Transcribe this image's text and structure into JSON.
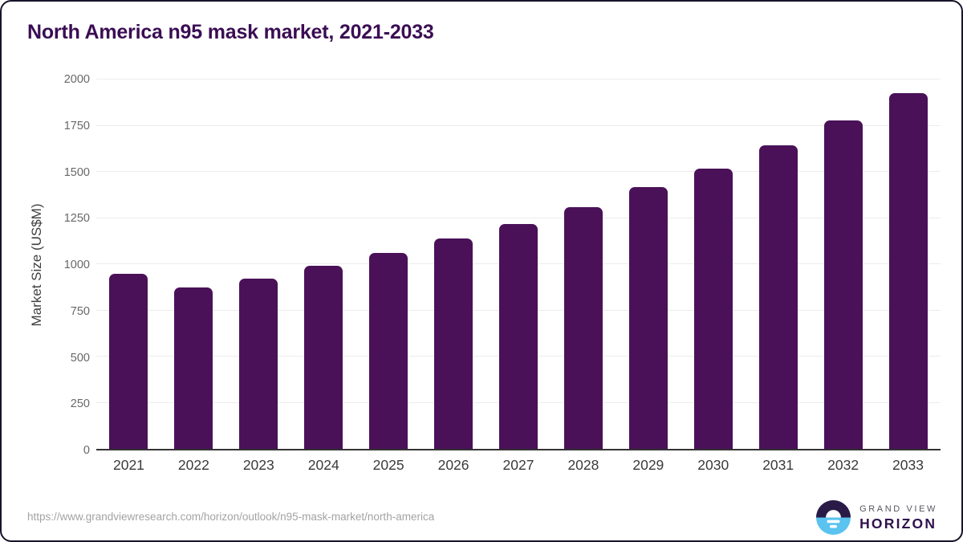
{
  "title": "North America n95 mask market, 2021-2033",
  "chart_data": {
    "type": "bar",
    "categories": [
      "2021",
      "2022",
      "2023",
      "2024",
      "2025",
      "2026",
      "2027",
      "2028",
      "2029",
      "2030",
      "2031",
      "2032",
      "2033"
    ],
    "values": [
      948,
      872,
      920,
      992,
      1062,
      1140,
      1218,
      1308,
      1418,
      1518,
      1645,
      1778,
      1925
    ],
    "title": "North America n95 mask market, 2021-2033",
    "xlabel": "",
    "ylabel": "Market Size (US$M)",
    "ylim": [
      0,
      2000
    ],
    "yticks": [
      0,
      250,
      500,
      750,
      1000,
      1250,
      1500,
      1750,
      2000
    ],
    "grid": true,
    "legend": "none",
    "bar_color": "#4a1158"
  },
  "colors": {
    "bar": "#4a1158",
    "title_text": "#3b0d54",
    "gridline": "#ececec",
    "axis_line": "#333333",
    "logo_navy": "#2a1a47",
    "logo_blue": "#5ac3ef"
  },
  "footer": {
    "source_url": "https://www.grandviewresearch.com/horizon/outlook/n95-mask-market/north-america",
    "logo": {
      "line1": "GRAND VIEW",
      "line2": "HORIZON"
    }
  }
}
